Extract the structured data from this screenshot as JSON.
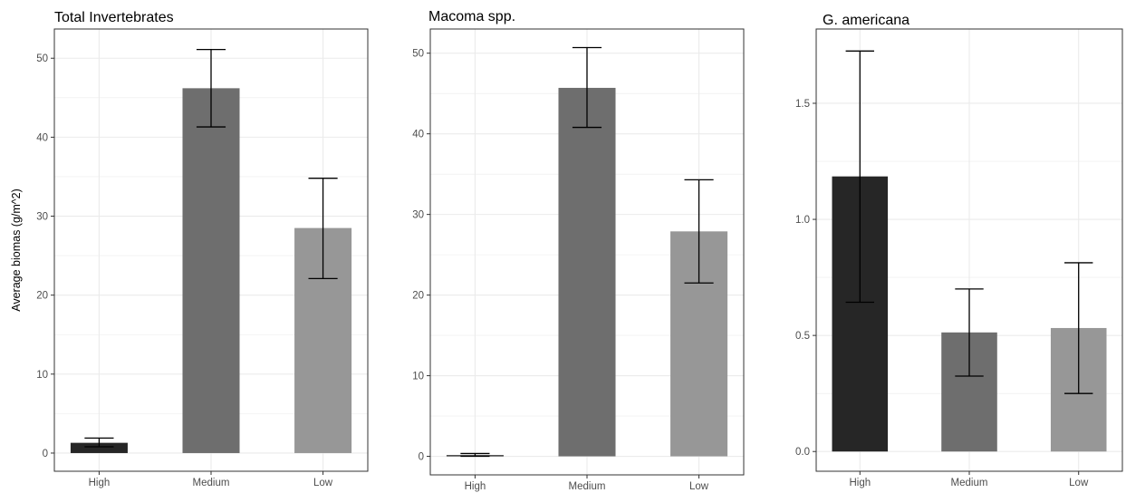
{
  "colors": {
    "High": "#262626",
    "Medium": "#6e6e6e",
    "Low": "#979797",
    "grid": "#ebebeb",
    "frame": "#333333",
    "errorbar": "#000000"
  },
  "chart_data": [
    {
      "type": "bar",
      "title": "Total Invertebrates",
      "xlabel": "",
      "ylabel": "Average biomas (g/m^2)",
      "categories": [
        "High",
        "Medium",
        "Low"
      ],
      "values": [
        1.3,
        46.2,
        28.5
      ],
      "errors": [
        [
          0.8,
          1.9
        ],
        [
          41.3,
          51.1
        ],
        [
          22.1,
          34.8
        ]
      ],
      "ylim": [
        -2.3,
        53.7
      ],
      "yticks": [
        0,
        10,
        20,
        30,
        40,
        50
      ],
      "ytick_labels": [
        "0",
        "10",
        "20",
        "30",
        "40",
        "50"
      ],
      "grid": true,
      "legend": "none"
    },
    {
      "type": "bar",
      "title": "Macoma spp.",
      "xlabel": "",
      "ylabel": "",
      "categories": [
        "High",
        "Medium",
        "Low"
      ],
      "values": [
        0.15,
        45.7,
        27.9
      ],
      "errors": [
        [
          0.0,
          0.35
        ],
        [
          40.8,
          50.7
        ],
        [
          21.5,
          34.3
        ]
      ],
      "ylim": [
        -2.3,
        53.0
      ],
      "yticks": [
        0,
        10,
        20,
        30,
        40,
        50
      ],
      "ytick_labels": [
        "0",
        "10",
        "20",
        "30",
        "40",
        "50"
      ],
      "grid": true,
      "legend": "none"
    },
    {
      "type": "bar",
      "title": "G. americana",
      "xlabel": "",
      "ylabel": "",
      "categories": [
        "High",
        "Medium",
        "Low"
      ],
      "values": [
        1.185,
        0.513,
        0.532
      ],
      "errors": [
        [
          0.643,
          1.725
        ],
        [
          0.325,
          0.7
        ],
        [
          0.25,
          0.813
        ]
      ],
      "ylim": [
        -0.085,
        1.82
      ],
      "yticks": [
        0.0,
        0.5,
        1.0,
        1.5
      ],
      "ytick_labels": [
        "0.0",
        "0.5",
        "1.0",
        "1.5"
      ],
      "grid": true,
      "legend": "none"
    }
  ]
}
